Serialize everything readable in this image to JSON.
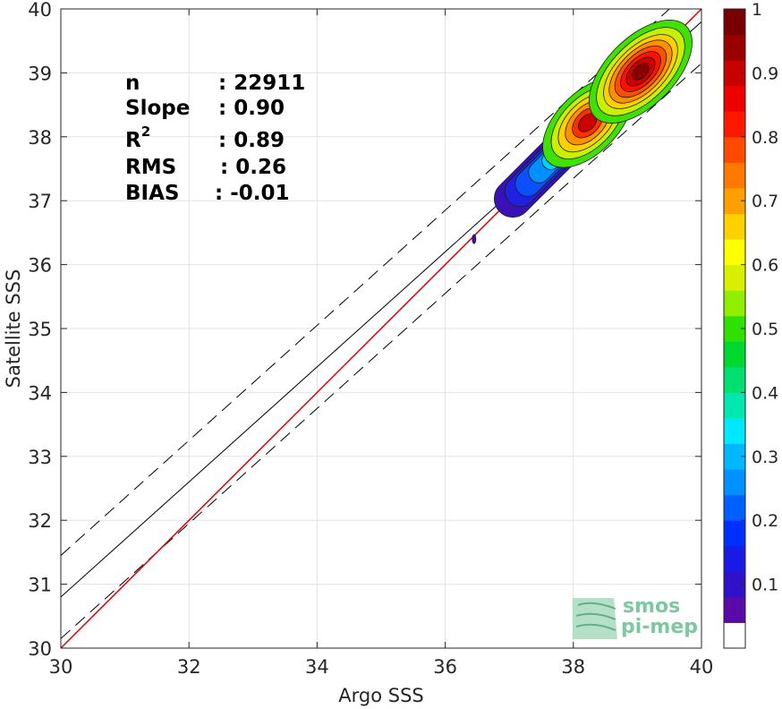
{
  "chart_data": {
    "type": "scatter",
    "subtype": "density-contour",
    "xlabel": "Argo SSS",
    "ylabel": "Satellite SSS",
    "xlim": [
      30,
      40
    ],
    "ylim": [
      30,
      40
    ],
    "xticks": [
      "30",
      "32",
      "34",
      "36",
      "38",
      "40"
    ],
    "yticks": [
      "30",
      "31",
      "32",
      "33",
      "34",
      "35",
      "36",
      "37",
      "38",
      "39",
      "40"
    ],
    "grid": true,
    "stats": [
      {
        "label": "n",
        "value": ": 22911"
      },
      {
        "label": "Slope",
        "value": ": 0.90"
      },
      {
        "label": "R",
        "sup": "2",
        "value": ": 0.89"
      },
      {
        "label": "RMS",
        "value": ": 0.26"
      },
      {
        "label": "BIAS",
        "value": ": -0.01"
      }
    ],
    "identity_line": {
      "from": [
        30,
        30
      ],
      "to": [
        40,
        40
      ],
      "color": "#e00000"
    },
    "fit_line": {
      "from": [
        30,
        30.8
      ],
      "to": [
        40,
        39.8
      ],
      "color": "#000000"
    },
    "fit_band_upper": {
      "from": [
        30,
        31.45
      ],
      "to": [
        40,
        40.45
      ]
    },
    "fit_band_lower": {
      "from": [
        30,
        30.15
      ],
      "to": [
        40,
        39.15
      ]
    },
    "density_peaks": [
      {
        "x": 38.2,
        "y": 38.2,
        "value": 0.95
      },
      {
        "x": 39.2,
        "y": 39.1,
        "value": 1.0
      }
    ],
    "colorbar": {
      "range": [
        0,
        1
      ],
      "tick_labels": [
        "0.1",
        "0.2",
        "0.3",
        "0.4",
        "0.5",
        "0.6",
        "0.7",
        "0.8",
        "0.9",
        "1"
      ],
      "tick_values": [
        0.1,
        0.2,
        0.3,
        0.4,
        0.5,
        0.6,
        0.7,
        0.8,
        0.9,
        1.0
      ],
      "colors": [
        "#ffffff",
        "#5a0aa8",
        "#3010c8",
        "#1a1ae6",
        "#0030ff",
        "#0060ff",
        "#0090ff",
        "#00b8ff",
        "#00e8ff",
        "#00e8b0",
        "#00e070",
        "#00d830",
        "#30e000",
        "#90ee00",
        "#d8f000",
        "#ffff00",
        "#ffd000",
        "#ffa000",
        "#ff7800",
        "#ff4800",
        "#ff1800",
        "#ee0000",
        "#c80000",
        "#9a0000",
        "#780000"
      ]
    }
  },
  "watermark": {
    "line1": "smos",
    "line2": "pi-mep",
    "color": "#7cc8a0"
  }
}
